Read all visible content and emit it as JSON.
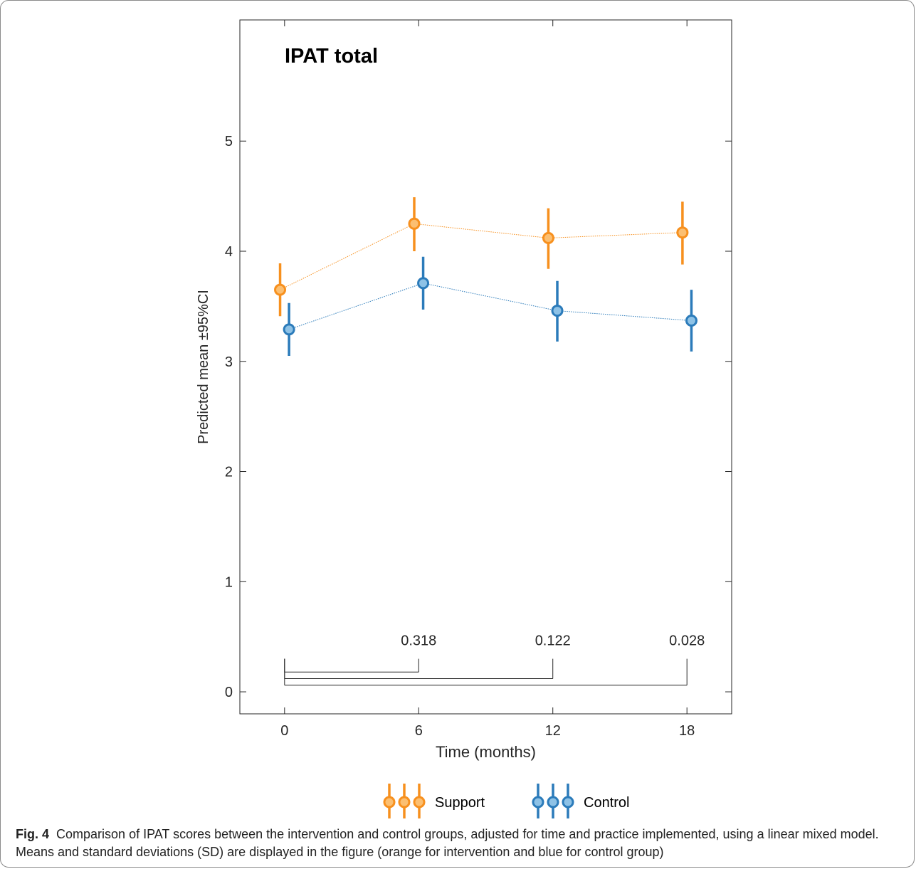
{
  "chart_data": {
    "type": "line",
    "title": "IPAT total",
    "xlabel": "Time (months)",
    "ylabel": "Predicted mean ±95%CI",
    "x_ticks": [
      0,
      6,
      12,
      18
    ],
    "xlim": [
      -2,
      20
    ],
    "y_ticks": [
      0,
      1,
      2,
      3,
      4,
      5
    ],
    "ylim": [
      -0.2,
      6.1
    ],
    "grid": false,
    "legend_position": "bottom",
    "series": [
      {
        "name": "Support",
        "color": "#f7901e",
        "fill": "#fbbf72",
        "x": [
          0,
          6,
          12,
          18
        ],
        "y": [
          3.65,
          4.25,
          4.12,
          4.17
        ],
        "ci_low": [
          3.41,
          4.0,
          3.84,
          3.88
        ],
        "ci_high": [
          3.89,
          4.49,
          4.39,
          4.45
        ],
        "x_offset": -0.2
      },
      {
        "name": "Control",
        "color": "#2b7bba",
        "fill": "#8ec2e6",
        "x": [
          0,
          6,
          12,
          18
        ],
        "y": [
          3.29,
          3.71,
          3.46,
          3.37
        ],
        "ci_low": [
          3.05,
          3.47,
          3.18,
          3.09
        ],
        "ci_high": [
          3.53,
          3.95,
          3.73,
          3.65
        ],
        "x_offset": 0.2
      }
    ],
    "comparisons": [
      {
        "from": 0,
        "to": 6,
        "label": "0.318",
        "line_y": 0.18,
        "tick_top": 0.3
      },
      {
        "from": 0,
        "to": 12,
        "label": "0.122",
        "line_y": 0.12,
        "tick_top": 0.3
      },
      {
        "from": 0,
        "to": 18,
        "label": "0.028",
        "line_y": 0.06,
        "tick_top": 0.3
      }
    ],
    "comparison_label_y": 0.47
  },
  "caption": {
    "label": "Fig. 4",
    "text": "Comparison of IPAT scores between the intervention and control groups, adjusted for time and practice implemented, using a linear mixed model. Means and standard deviations (SD) are displayed in the figure (orange for intervention and blue for control group)"
  }
}
